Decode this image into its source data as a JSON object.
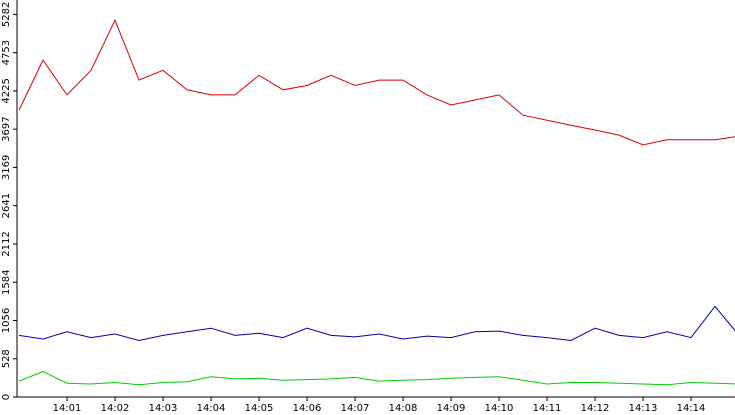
{
  "chart_data": {
    "type": "line",
    "x": [
      0,
      0.5,
      1,
      1.5,
      2,
      2.5,
      3,
      3.5,
      4,
      4.5,
      5,
      5.5,
      6,
      6.5,
      7,
      7.5,
      8,
      8.5,
      9,
      9.5,
      10,
      10.5,
      11,
      11.5,
      12,
      12.5,
      13,
      13.5,
      14,
      14.5,
      15
    ],
    "series": [
      {
        "color": "#e00000",
        "values": [
          3960,
          4650,
          4170,
          4510,
          5200,
          4375,
          4510,
          4240,
          4170,
          4170,
          4440,
          4240,
          4300,
          4440,
          4300,
          4375,
          4375,
          4170,
          4030,
          4100,
          4170,
          3890,
          3820,
          3750,
          3685,
          3615,
          3480,
          3550,
          3550,
          3550,
          3600
        ]
      },
      {
        "color": "#0000b0",
        "values": [
          850,
          800,
          900,
          820,
          870,
          780,
          850,
          900,
          950,
          850,
          880,
          820,
          950,
          850,
          830,
          870,
          800,
          840,
          820,
          900,
          910,
          850,
          820,
          780,
          950,
          850,
          820,
          900,
          820,
          1250,
          850
        ]
      },
      {
        "color": "#00d000",
        "values": [
          220,
          350,
          190,
          180,
          200,
          170,
          200,
          210,
          280,
          250,
          260,
          230,
          240,
          250,
          270,
          220,
          230,
          240,
          260,
          270,
          280,
          230,
          180,
          200,
          200,
          190,
          180,
          170,
          200,
          190,
          180
        ]
      }
    ],
    "xlim": [
      0,
      15
    ],
    "xticks": [
      {
        "value": 1,
        "label": "14:01"
      },
      {
        "value": 2,
        "label": "14:02"
      },
      {
        "value": 3,
        "label": "14:03"
      },
      {
        "value": 4,
        "label": "14:04"
      },
      {
        "value": 5,
        "label": "14:05"
      },
      {
        "value": 6,
        "label": "14:06"
      },
      {
        "value": 7,
        "label": "14:07"
      },
      {
        "value": 8,
        "label": "14:08"
      },
      {
        "value": 9,
        "label": "14:09"
      },
      {
        "value": 10,
        "label": "14:10"
      },
      {
        "value": 11,
        "label": "14:11"
      },
      {
        "value": 12,
        "label": "14:12"
      },
      {
        "value": 13,
        "label": "14:13"
      },
      {
        "value": 14,
        "label": "14:14"
      }
    ],
    "ylim": [
      0,
      5480
    ],
    "yticks": [
      0,
      528,
      1056,
      1584,
      2112,
      2641,
      3169,
      3697,
      4225,
      4753,
      5282
    ]
  }
}
